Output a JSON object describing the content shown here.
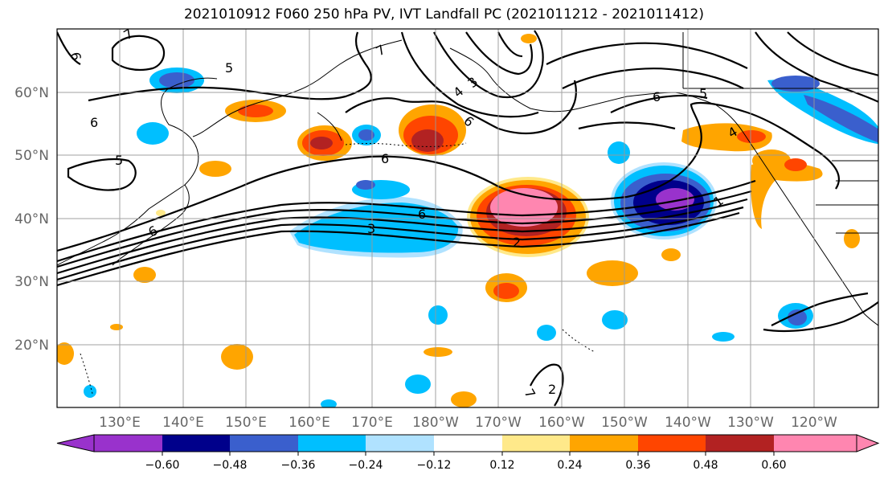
{
  "title": "2021010912 F060 250 hPa PV, IVT Landfall PC (2021011212 - 2021011412)",
  "lat_labels": [
    "60°N",
    "50°N",
    "40°N",
    "30°N",
    "20°N"
  ],
  "lon_labels": [
    "130°E",
    "140°E",
    "150°E",
    "160°E",
    "170°E",
    "180°W",
    "170°W",
    "160°W",
    "150°W",
    "140°W",
    "130°W",
    "120°W"
  ],
  "colorbar": {
    "ticks": [
      "−0.60",
      "−0.48",
      "−0.36",
      "−0.24",
      "−0.12",
      "0.12",
      "0.24",
      "0.36",
      "0.48",
      "0.60"
    ],
    "colors": [
      "#9932cc",
      "#00008b",
      "#3a5fcd",
      "#00bfff",
      "#b0e2ff",
      "#ffffff",
      "#ffe98a",
      "#ffa500",
      "#ff4500",
      "#b22222",
      "#ff86b0"
    ]
  },
  "contour_labels": [
    "7",
    "6",
    "5",
    "6",
    "5",
    "6",
    "7",
    "3",
    "4",
    "6",
    "6",
    "6",
    "3",
    "6",
    "2",
    "1",
    "4",
    "5",
    "7",
    "2"
  ]
}
